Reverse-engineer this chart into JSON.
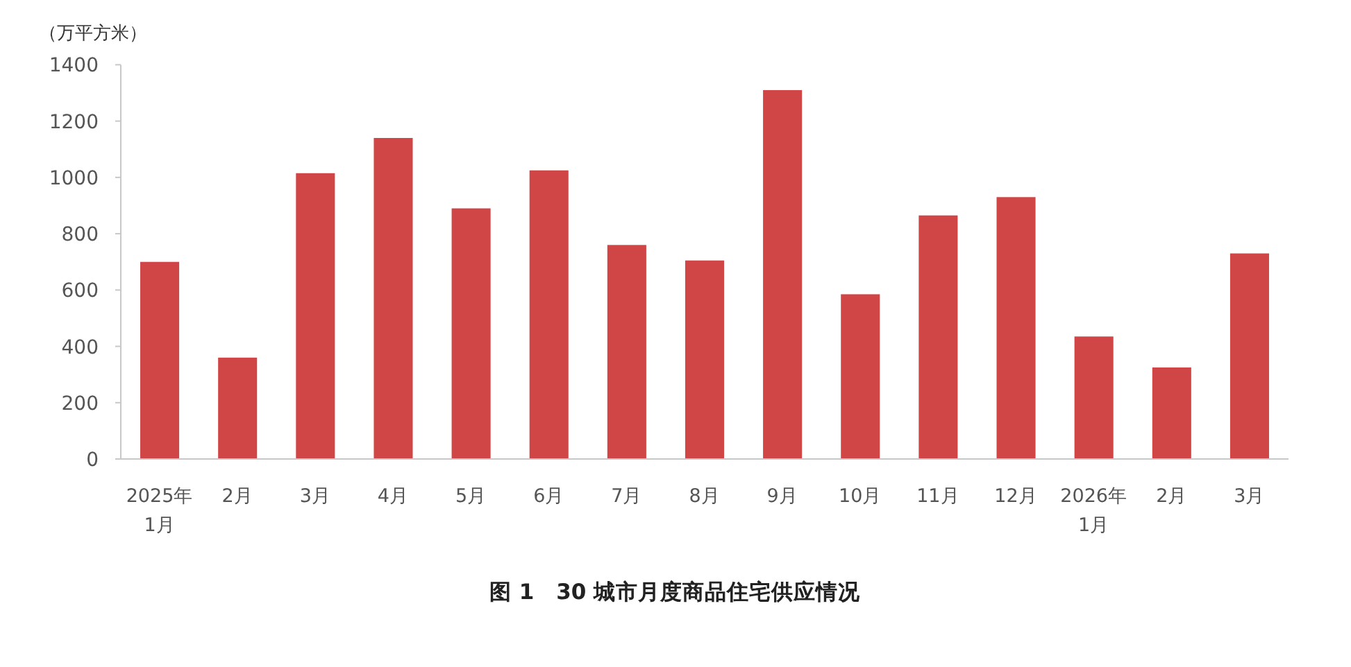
{
  "chart_data": {
    "type": "bar",
    "title": "图 1　30 城市月度商品住宅供应情况",
    "ylabel": "（万平方米）",
    "categories": [
      "2025年\n1月",
      "2月",
      "3月",
      "4月",
      "5月",
      "6月",
      "7月",
      "8月",
      "9月",
      "10月",
      "11月",
      "12月",
      "2026年\n1月",
      "2月",
      "3月"
    ],
    "values": [
      700,
      360,
      1015,
      1140,
      890,
      1025,
      760,
      705,
      1310,
      585,
      865,
      930,
      435,
      325,
      730
    ],
    "color": "#d04545",
    "ylim": [
      0,
      1400
    ],
    "yticks": [
      0,
      200,
      400,
      600,
      800,
      1000,
      1200,
      1400
    ]
  }
}
